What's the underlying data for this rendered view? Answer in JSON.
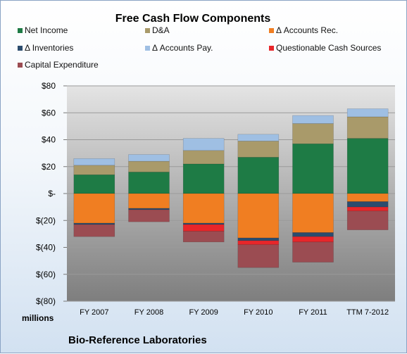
{
  "chart_data": {
    "type": "bar",
    "stacked": true,
    "title": "Free Cash Flow Components",
    "footer": "Bio-Reference Laboratories",
    "units_label": "millions",
    "categories": [
      "FY 2007",
      "FY 2008",
      "FY 2009",
      "FY 2010",
      "FY 2011",
      "TTM 7-2012"
    ],
    "ylim": [
      -80,
      80
    ],
    "yticks": [
      -80,
      -60,
      -40,
      -20,
      0,
      20,
      40,
      60,
      80
    ],
    "ytick_labels": [
      "$(80)",
      "$(60)",
      "$(40)",
      "$(20)",
      "$-",
      "$20",
      "$40",
      "$60",
      "$80"
    ],
    "grid": true,
    "legend_position": "top",
    "series": [
      {
        "name": "Net Income",
        "color": "#1e7b45",
        "values": [
          14,
          16,
          22,
          27,
          37,
          41
        ]
      },
      {
        "name": "D&A",
        "color": "#a99a6a",
        "values": [
          7,
          8,
          10,
          12,
          15,
          16
        ]
      },
      {
        "name": "Δ Accounts Rec.",
        "color": "#f07e22",
        "values": [
          -22,
          -11,
          -22,
          -33,
          -29,
          -6
        ]
      },
      {
        "name": "Δ Inventories",
        "color": "#2c4c6e",
        "values": [
          -1,
          -1,
          -1,
          -2,
          -3,
          -4
        ]
      },
      {
        "name": "Δ Accounts Pay.",
        "color": "#9fbfe3",
        "values": [
          5,
          5,
          9,
          5,
          6,
          6
        ]
      },
      {
        "name": "Questionable Cash Sources",
        "color": "#e8262a",
        "values": [
          0,
          0,
          -5,
          -3,
          -4,
          -3
        ]
      },
      {
        "name": "Capital Expenditure",
        "color": "#9b4c52",
        "values": [
          -9,
          -9,
          -8,
          -17,
          -15,
          -14
        ]
      }
    ]
  }
}
